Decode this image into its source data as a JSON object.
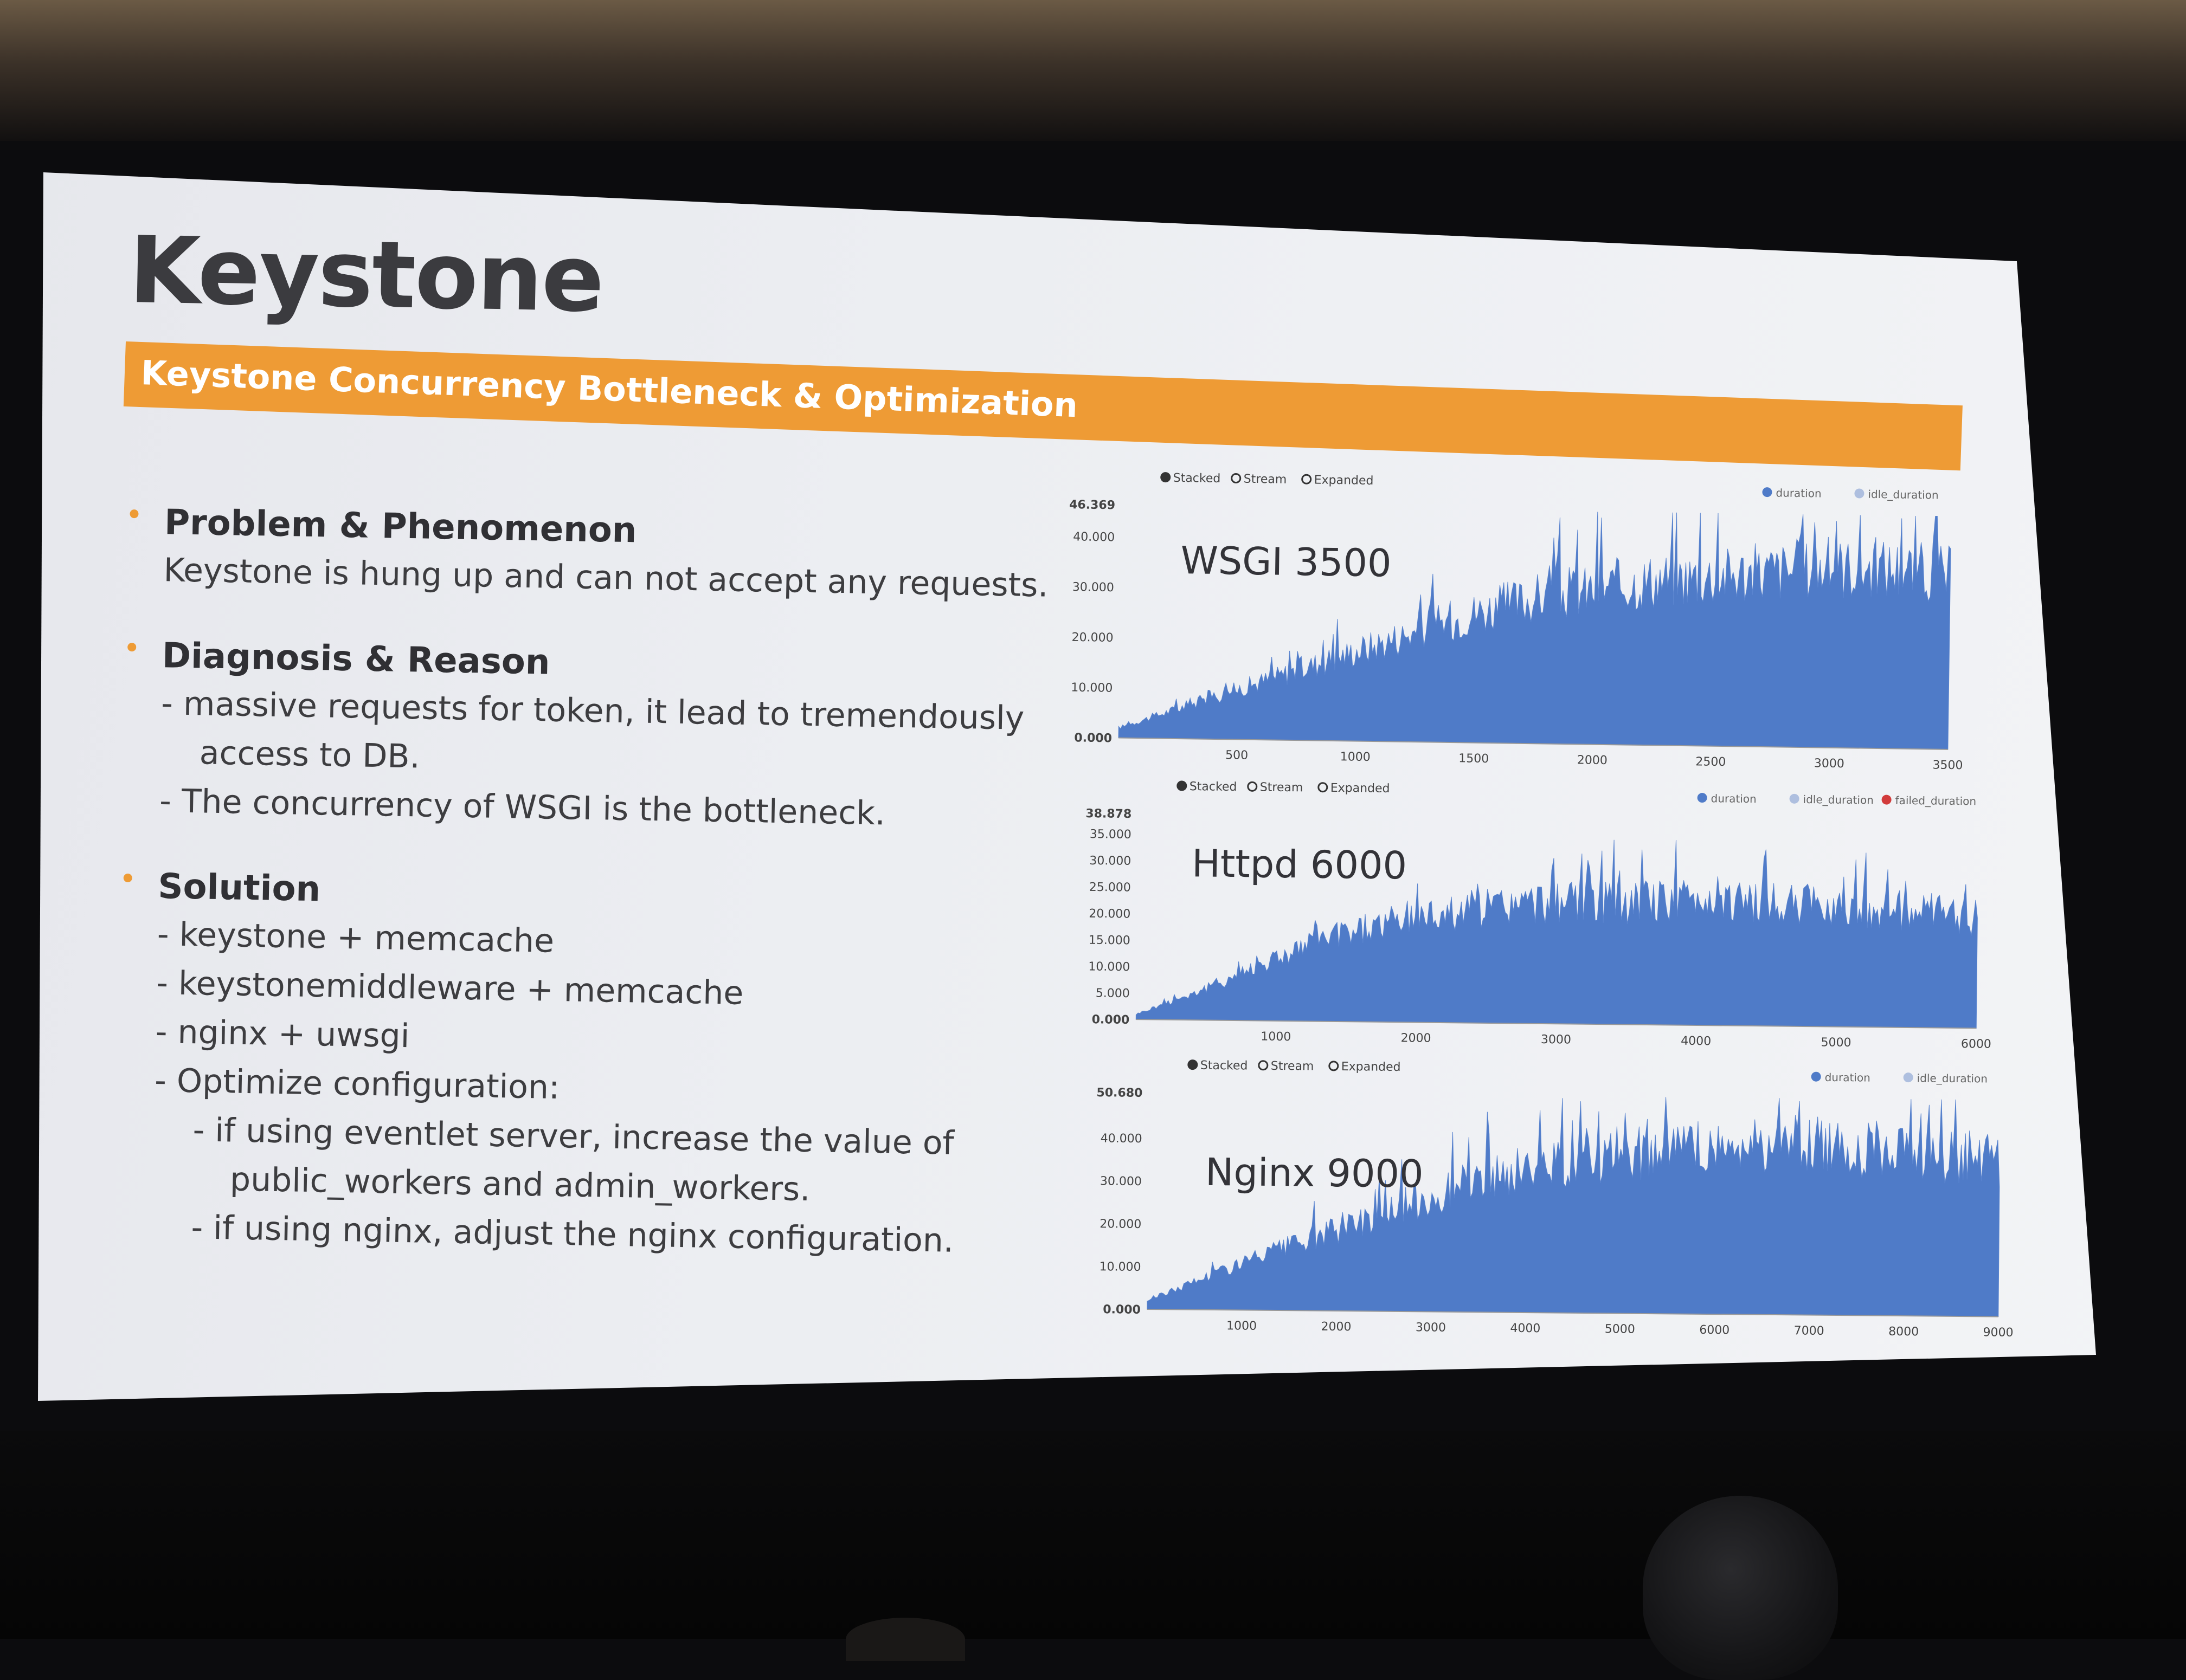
{
  "slide": {
    "title": "Keystone",
    "banner": "Keystone Concurrency Bottleneck & Optimization",
    "sections": [
      {
        "heading": "Problem & Phenomenon",
        "lines": [
          "Keystone is hung up and can not accept any requests."
        ]
      },
      {
        "heading": "Diagnosis & Reason",
        "lines": [
          "- massive requests for token, it lead to  tremendously",
          "access to DB.",
          "- The concurrency of WSGI is the bottleneck."
        ]
      },
      {
        "heading": "Solution",
        "lines": [
          "- keystone + memcache",
          "- keystonemiddleware + memcache",
          "- nginx + uwsgi",
          "- Optimize configuration:",
          "- if using eventlet server, increase the value of",
          "public_workers and admin_workers.",
          "- if using nginx,  adjust the nginx configuration."
        ]
      }
    ]
  },
  "colors": {
    "accent": "#ee9b35",
    "series_fill": "#4f7bc8",
    "series_fill_light": "#aebfdf",
    "failed": "#d23b3b"
  },
  "chart_data": [
    {
      "type": "area",
      "label": "WSGI 3500",
      "controls": [
        "Stacked",
        "Stream",
        "Expanded"
      ],
      "legend": [
        "duration",
        "idle_duration"
      ],
      "y_ticks": [
        "0.000",
        "10.000",
        "20.000",
        "30.000",
        "40.000",
        "46.369"
      ],
      "x_ticks": [
        "500",
        "1000",
        "1500",
        "2000",
        "2500",
        "3000",
        "3500"
      ],
      "xlim": [
        0,
        3500
      ],
      "ylim": [
        0,
        46.369
      ],
      "series": [
        {
          "name": "duration",
          "x": [
            0,
            250,
            500,
            750,
            1000,
            1250,
            1500,
            1750,
            2000,
            2250,
            2500,
            2750,
            3000,
            3250,
            3500
          ],
          "values": [
            2,
            6,
            10,
            14,
            18,
            22,
            26,
            29,
            31,
            33,
            34,
            35,
            36,
            36,
            35
          ]
        }
      ]
    },
    {
      "type": "area",
      "label": "Httpd 6000",
      "controls": [
        "Stacked",
        "Stream",
        "Expanded"
      ],
      "legend": [
        "duration",
        "idle_duration",
        "failed_duration"
      ],
      "y_ticks": [
        "0.000",
        "5.000",
        "10.000",
        "15.000",
        "20.000",
        "25.000",
        "30.000",
        "35.000",
        "38.878"
      ],
      "x_ticks": [
        "1000",
        "2000",
        "3000",
        "4000",
        "5000",
        "6000"
      ],
      "xlim": [
        0,
        6000
      ],
      "ylim": [
        0,
        38.878
      ],
      "series": [
        {
          "name": "duration",
          "x": [
            0,
            500,
            1000,
            1500,
            2000,
            2500,
            3000,
            3500,
            4000,
            4500,
            5000,
            5500,
            6000
          ],
          "values": [
            1,
            6,
            12,
            17,
            20,
            22,
            23,
            23,
            24,
            23,
            23,
            22,
            21
          ]
        }
      ]
    },
    {
      "type": "area",
      "label": "Nginx 9000",
      "controls": [
        "Stacked",
        "Stream",
        "Expanded"
      ],
      "legend": [
        "duration",
        "idle_duration"
      ],
      "y_ticks": [
        "0.000",
        "10.000",
        "20.000",
        "30.000",
        "40.000",
        "50.680"
      ],
      "x_ticks": [
        "1000",
        "2000",
        "3000",
        "4000",
        "5000",
        "6000",
        "7000",
        "8000",
        "9000"
      ],
      "xlim": [
        0,
        9000
      ],
      "ylim": [
        0,
        50.68
      ],
      "series": [
        {
          "name": "duration",
          "x": [
            0,
            750,
            1500,
            2250,
            3000,
            3750,
            4500,
            5250,
            6000,
            6750,
            7500,
            8250,
            9000
          ],
          "values": [
            2,
            9,
            15,
            21,
            27,
            32,
            36,
            38,
            39,
            40,
            39,
            38,
            36
          ]
        }
      ]
    }
  ]
}
